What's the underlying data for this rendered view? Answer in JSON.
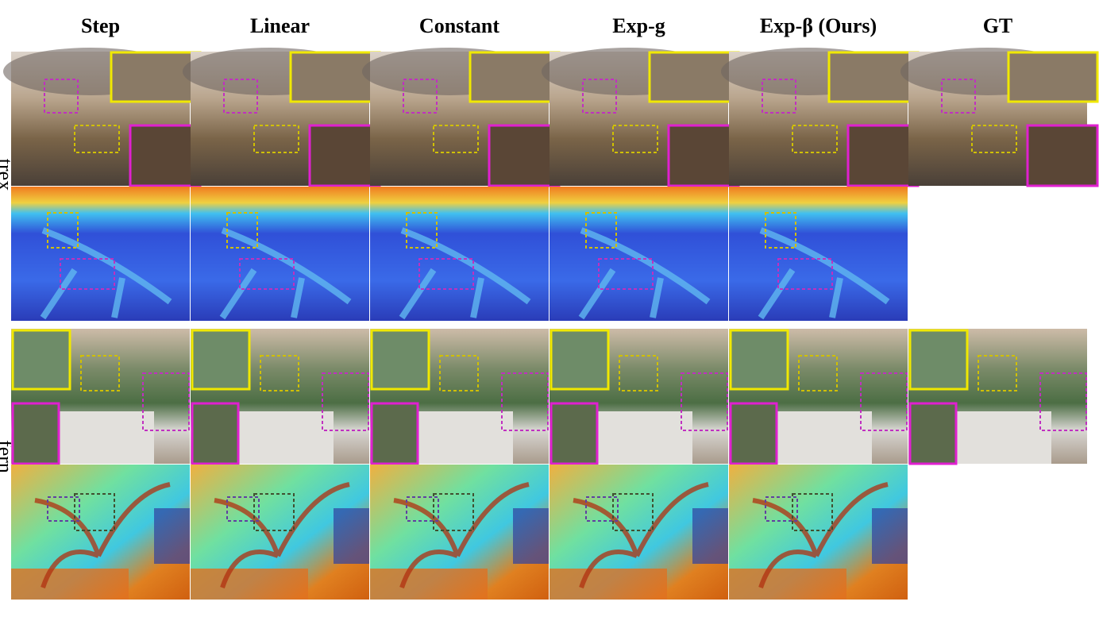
{
  "columns": [
    "Step",
    "Linear",
    "Constant",
    "Exp-g",
    "Exp-β (Ours)",
    "GT"
  ],
  "rows": [
    {
      "label": "trex"
    },
    {
      "label": "fern"
    }
  ]
}
